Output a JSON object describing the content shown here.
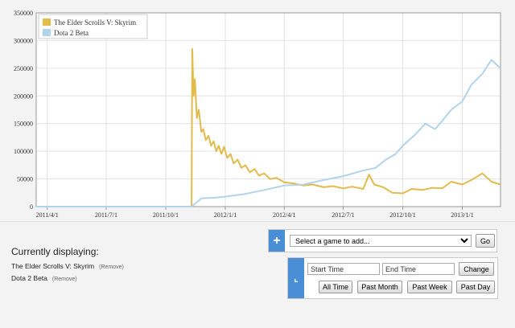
{
  "chart_data": {
    "type": "line",
    "x_tick_labels": [
      "2011/4/1",
      "2011/7/1",
      "2011/10/1",
      "2012/1/1",
      "2012/4/1",
      "2012/7/1",
      "2012/10/1",
      "2013/1/1"
    ],
    "x_ticks": [
      "2011-04-01",
      "2011-07-01",
      "2011-10-01",
      "2012-01-01",
      "2012-04-01",
      "2012-07-01",
      "2012-10-01",
      "2013-01-01"
    ],
    "x_range": [
      "2011-03-15",
      "2013-03-01"
    ],
    "ylim": [
      0,
      350000
    ],
    "y_ticks": [
      0,
      50000,
      100000,
      150000,
      200000,
      250000,
      300000,
      350000
    ],
    "grid": true,
    "legend_position": "top-left",
    "series": [
      {
        "name": "The Elder Scrolls V: Skyrim",
        "color": "#e2bb4c",
        "points": [
          [
            "2011-03-15",
            0
          ],
          [
            "2011-11-10",
            0
          ],
          [
            "2011-11-11",
            285000
          ],
          [
            "2011-11-13",
            200000
          ],
          [
            "2011-11-15",
            230000
          ],
          [
            "2011-11-18",
            160000
          ],
          [
            "2011-11-21",
            175000
          ],
          [
            "2011-11-25",
            135000
          ],
          [
            "2011-11-28",
            140000
          ],
          [
            "2011-12-02",
            120000
          ],
          [
            "2011-12-06",
            128000
          ],
          [
            "2011-12-10",
            110000
          ],
          [
            "2011-12-14",
            118000
          ],
          [
            "2011-12-18",
            100000
          ],
          [
            "2011-12-22",
            110000
          ],
          [
            "2011-12-26",
            95000
          ],
          [
            "2011-12-30",
            108000
          ],
          [
            "2012-01-04",
            88000
          ],
          [
            "2012-01-09",
            95000
          ],
          [
            "2012-01-14",
            78000
          ],
          [
            "2012-01-20",
            85000
          ],
          [
            "2012-01-26",
            70000
          ],
          [
            "2012-02-01",
            75000
          ],
          [
            "2012-02-08",
            62000
          ],
          [
            "2012-02-15",
            68000
          ],
          [
            "2012-02-22",
            56000
          ],
          [
            "2012-03-01",
            60000
          ],
          [
            "2012-03-10",
            50000
          ],
          [
            "2012-03-20",
            52000
          ],
          [
            "2012-04-01",
            44000
          ],
          [
            "2012-04-15",
            42000
          ],
          [
            "2012-05-01",
            38000
          ],
          [
            "2012-05-15",
            40000
          ],
          [
            "2012-06-01",
            35000
          ],
          [
            "2012-06-15",
            37000
          ],
          [
            "2012-07-01",
            33000
          ],
          [
            "2012-07-15",
            36000
          ],
          [
            "2012-08-01",
            32000
          ],
          [
            "2012-08-10",
            58000
          ],
          [
            "2012-08-18",
            40000
          ],
          [
            "2012-09-01",
            35000
          ],
          [
            "2012-09-15",
            25000
          ],
          [
            "2012-10-01",
            24000
          ],
          [
            "2012-10-15",
            32000
          ],
          [
            "2012-11-01",
            30000
          ],
          [
            "2012-11-15",
            34000
          ],
          [
            "2012-12-01",
            33000
          ],
          [
            "2012-12-15",
            45000
          ],
          [
            "2013-01-01",
            40000
          ],
          [
            "2013-01-15",
            48000
          ],
          [
            "2013-02-01",
            60000
          ],
          [
            "2013-02-15",
            45000
          ],
          [
            "2013-03-01",
            40000
          ]
        ]
      },
      {
        "name": "Dota 2 Beta",
        "color": "#b2d3ec",
        "points": [
          [
            "2011-03-15",
            0
          ],
          [
            "2011-11-10",
            0
          ],
          [
            "2011-11-25",
            15000
          ],
          [
            "2011-12-15",
            16000
          ],
          [
            "2012-01-01",
            18000
          ],
          [
            "2012-02-01",
            23000
          ],
          [
            "2012-03-01",
            30000
          ],
          [
            "2012-04-01",
            38000
          ],
          [
            "2012-05-01",
            40000
          ],
          [
            "2012-06-01",
            48000
          ],
          [
            "2012-07-01",
            55000
          ],
          [
            "2012-08-01",
            65000
          ],
          [
            "2012-08-20",
            70000
          ],
          [
            "2012-09-05",
            85000
          ],
          [
            "2012-09-20",
            95000
          ],
          [
            "2012-10-01",
            110000
          ],
          [
            "2012-10-20",
            130000
          ],
          [
            "2012-11-05",
            150000
          ],
          [
            "2012-11-20",
            140000
          ],
          [
            "2012-12-01",
            155000
          ],
          [
            "2012-12-15",
            175000
          ],
          [
            "2013-01-01",
            190000
          ],
          [
            "2013-01-15",
            220000
          ],
          [
            "2013-02-01",
            240000
          ],
          [
            "2013-02-15",
            265000
          ],
          [
            "2013-03-01",
            250000
          ]
        ]
      }
    ]
  },
  "current": {
    "title": "Currently displaying:",
    "items": [
      {
        "name": "The Elder Scrolls V: Skyrim",
        "remove": "(Remove)"
      },
      {
        "name": "Dota 2 Beta",
        "remove": "(Remove)"
      }
    ]
  },
  "add_panel": {
    "icon": "plus-icon",
    "select_value": "Select a game to add...",
    "go_label": "Go"
  },
  "time_panel": {
    "icon": "time-icon",
    "start_value": "Start Time",
    "end_value": "End Time",
    "change_label": "Change",
    "buttons": [
      "All Time",
      "Past Month",
      "Past Week",
      "Past Day"
    ]
  },
  "colors": {
    "accent": "#4a8fd6"
  }
}
